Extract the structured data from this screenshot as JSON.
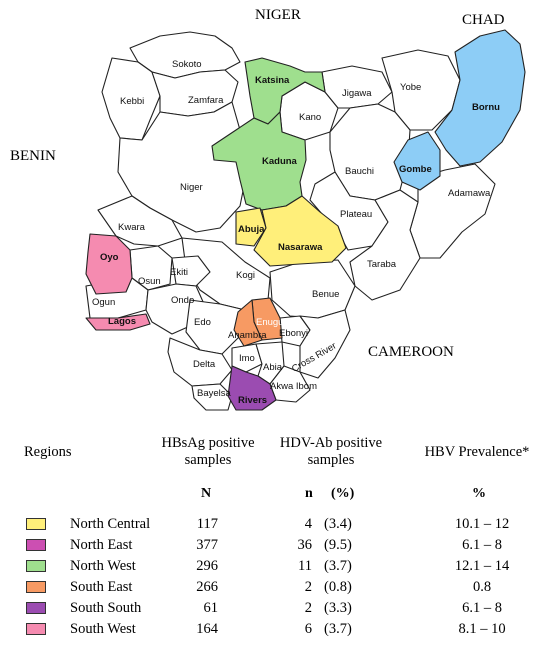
{
  "map": {
    "countries": [
      "NIGER",
      "CHAD",
      "BENIN",
      "CAMEROON"
    ],
    "states": [
      "Sokoto",
      "Kebbi",
      "Zamfara",
      "Katsina",
      "Kano",
      "Jigawa",
      "Yobe",
      "Bornu",
      "Kaduna",
      "Bauchi",
      "Gombe",
      "Adamawa",
      "Niger",
      "Kwara",
      "Abuja",
      "Nasarawa",
      "Plateau",
      "Taraba",
      "Oyo",
      "Ekiti",
      "Osun",
      "Kogi",
      "Benue",
      "Ogun",
      "Ondo",
      "Lagos",
      "Edo",
      "Anambra",
      "Enugu",
      "Ebonyi",
      "Delta",
      "Imo",
      "Abia",
      "Cross River",
      "Bayelsa",
      "Rivers",
      "Akwa Ibom"
    ]
  },
  "colors": {
    "north_central": "#ffef7a",
    "north_east": "#cc4fb2",
    "north_west": "#9fdf8e",
    "south_east": "#f79a63",
    "south_south": "#9b4cb1",
    "south_west": "#f58bb0",
    "bornu_gombe": "#8dcdf6"
  },
  "table": {
    "headers": {
      "regions": "Regions",
      "hbsag": "HBsAg positive samples",
      "hdv": "HDV-Ab positive samples",
      "hbv": "HBV Prevalence*"
    },
    "subheaders": {
      "n_cap": "N",
      "n": "n",
      "pct": "(%)",
      "pct2": "%"
    },
    "rows": [
      {
        "region": "North Central",
        "color": "#ffef7a",
        "N": "117",
        "n": "4",
        "pct": "(3.4)",
        "hbv": "10.1 – 12"
      },
      {
        "region": "North East",
        "color": "#cc4fb2",
        "N": "377",
        "n": "36",
        "pct": "(9.5)",
        "hbv": "6.1 – 8"
      },
      {
        "region": "North West",
        "color": "#9fdf8e",
        "N": "296",
        "n": "11",
        "pct": "(3.7)",
        "hbv": "12.1 – 14"
      },
      {
        "region": "South East",
        "color": "#f79a63",
        "N": "266",
        "n": "2",
        "pct": "(0.8)",
        "hbv": "0.8"
      },
      {
        "region": "South South",
        "color": "#9b4cb1",
        "N": "61",
        "n": "2",
        "pct": "(3.3)",
        "hbv": "6.1 – 8"
      },
      {
        "region": "South West",
        "color": "#f58bb0",
        "N": "164",
        "n": "6",
        "pct": "(3.7)",
        "hbv": "8.1 – 10"
      }
    ]
  }
}
